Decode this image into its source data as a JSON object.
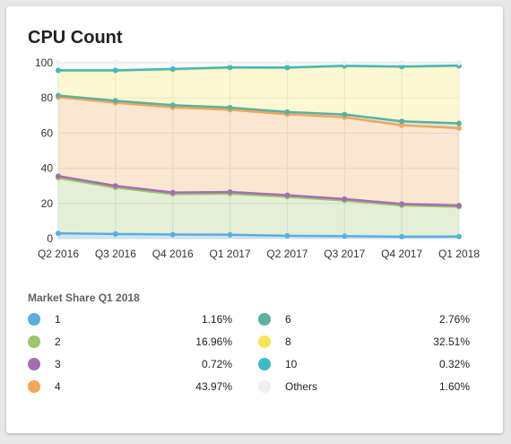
{
  "card": {
    "title": "CPU Count"
  },
  "chart_data": {
    "type": "area",
    "title": "CPU Count",
    "categories": [
      "Q2 2016",
      "Q3 2016",
      "Q4 2016",
      "Q1 2017",
      "Q2 2017",
      "Q3 2017",
      "Q4 2017",
      "Q1 2018"
    ],
    "ylim": [
      0,
      100
    ],
    "yticks": [
      "0",
      "20",
      "40",
      "60",
      "80",
      "100"
    ],
    "stacked": true,
    "grid": true,
    "series": [
      {
        "name": "1",
        "color": "#5aaee0",
        "values": [
          3.0,
          2.6,
          2.3,
          2.2,
          1.6,
          1.4,
          1.1,
          1.16
        ]
      },
      {
        "name": "2",
        "color": "#9bc56b",
        "values": [
          31.5,
          26.4,
          23.0,
          23.4,
          22.2,
          20.3,
          17.8,
          16.96
        ]
      },
      {
        "name": "3",
        "color": "#a26eb1",
        "values": [
          1.0,
          1.0,
          0.9,
          0.9,
          0.9,
          0.8,
          0.8,
          0.72
        ]
      },
      {
        "name": "4",
        "color": "#f2a65a",
        "values": [
          45.0,
          47.3,
          48.5,
          46.8,
          46.0,
          46.5,
          44.8,
          43.97
        ]
      },
      {
        "name": "6",
        "color": "#5bb0a0",
        "values": [
          0.9,
          1.1,
          1.2,
          1.2,
          1.3,
          1.6,
          2.2,
          2.76
        ]
      },
      {
        "name": "8",
        "color": "#f6e55b",
        "values": [
          14.0,
          17.0,
          20.3,
          22.6,
          25.0,
          27.4,
          30.9,
          32.51
        ]
      },
      {
        "name": "10",
        "color": "#41b7c8",
        "values": [
          0.3,
          0.3,
          0.3,
          0.3,
          0.3,
          0.3,
          0.3,
          0.32
        ]
      },
      {
        "name": "Others",
        "color": "#efefef",
        "values": [
          4.3,
          4.3,
          3.5,
          2.6,
          2.7,
          1.7,
          2.1,
          1.6
        ]
      }
    ]
  },
  "legend": {
    "title": "Market Share Q1 2018",
    "items": [
      {
        "name": "1",
        "value": "1.16%",
        "color": "#5aaee0"
      },
      {
        "name": "2",
        "value": "16.96%",
        "color": "#9bc56b"
      },
      {
        "name": "3",
        "value": "0.72%",
        "color": "#a26eb1"
      },
      {
        "name": "4",
        "value": "43.97%",
        "color": "#f2a65a"
      },
      {
        "name": "6",
        "value": "2.76%",
        "color": "#5bb0a0"
      },
      {
        "name": "8",
        "value": "32.51%",
        "color": "#f6e55b"
      },
      {
        "name": "10",
        "value": "0.32%",
        "color": "#41b7c8"
      },
      {
        "name": "Others",
        "value": "1.60%",
        "color": "#efefef"
      }
    ]
  }
}
